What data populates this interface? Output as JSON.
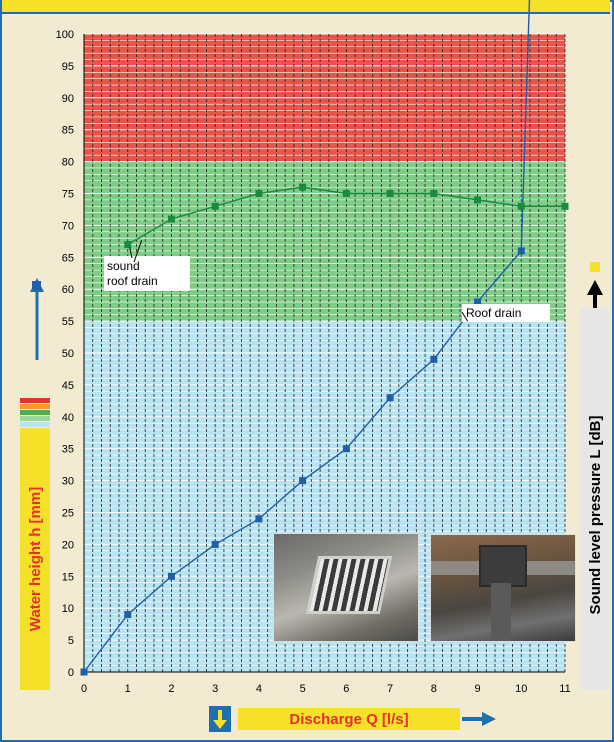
{
  "chart_data": {
    "type": "line",
    "xlabel": "Discharge Q [l/s]",
    "ylabel": "Water height h [mm]",
    "ylabel_right": "Sound level pressure L [dB]",
    "xlim": [
      0,
      11
    ],
    "ylim": [
      0,
      100
    ],
    "x_ticks": [
      0,
      1,
      2,
      3,
      4,
      5,
      6,
      7,
      8,
      9,
      10,
      11
    ],
    "y_ticks": [
      0,
      5,
      10,
      15,
      20,
      25,
      30,
      35,
      40,
      45,
      50,
      55,
      60,
      65,
      70,
      75,
      80,
      85,
      90,
      95,
      100
    ],
    "bands": [
      {
        "from": 0,
        "to": 55,
        "color": "#b8e3f2"
      },
      {
        "from": 55,
        "to": 80,
        "color": "#7fcc86"
      },
      {
        "from": 80,
        "to": 100,
        "color": "#e8534a"
      }
    ],
    "grid": true,
    "series": [
      {
        "name": "Roof drain",
        "color": "#1f5fa8",
        "x": [
          0,
          1,
          2,
          3,
          4,
          5,
          6,
          7,
          8,
          9,
          10,
          10.2
        ],
        "y": [
          0,
          9,
          15,
          20,
          24,
          30,
          35,
          43,
          49,
          58,
          66,
          108
        ],
        "markers": [
          true,
          true,
          true,
          true,
          true,
          true,
          true,
          true,
          true,
          true,
          true,
          false
        ]
      },
      {
        "name": "sound roof drain",
        "color": "#1a8a3e",
        "x": [
          1,
          2,
          3,
          4,
          5,
          6,
          7,
          8,
          9,
          10,
          11
        ],
        "y": [
          67,
          71,
          73,
          75,
          76,
          75,
          75,
          75,
          74,
          73,
          73
        ]
      }
    ],
    "annotations": [
      {
        "text_lines": [
          "sound",
          "roof drain"
        ]
      },
      {
        "text_lines": [
          "Roof drain"
        ]
      }
    ]
  },
  "colors": {
    "yellow": "#f6e12a",
    "red_text": "#e8302a",
    "blue_accent": "#1f6fb0"
  }
}
